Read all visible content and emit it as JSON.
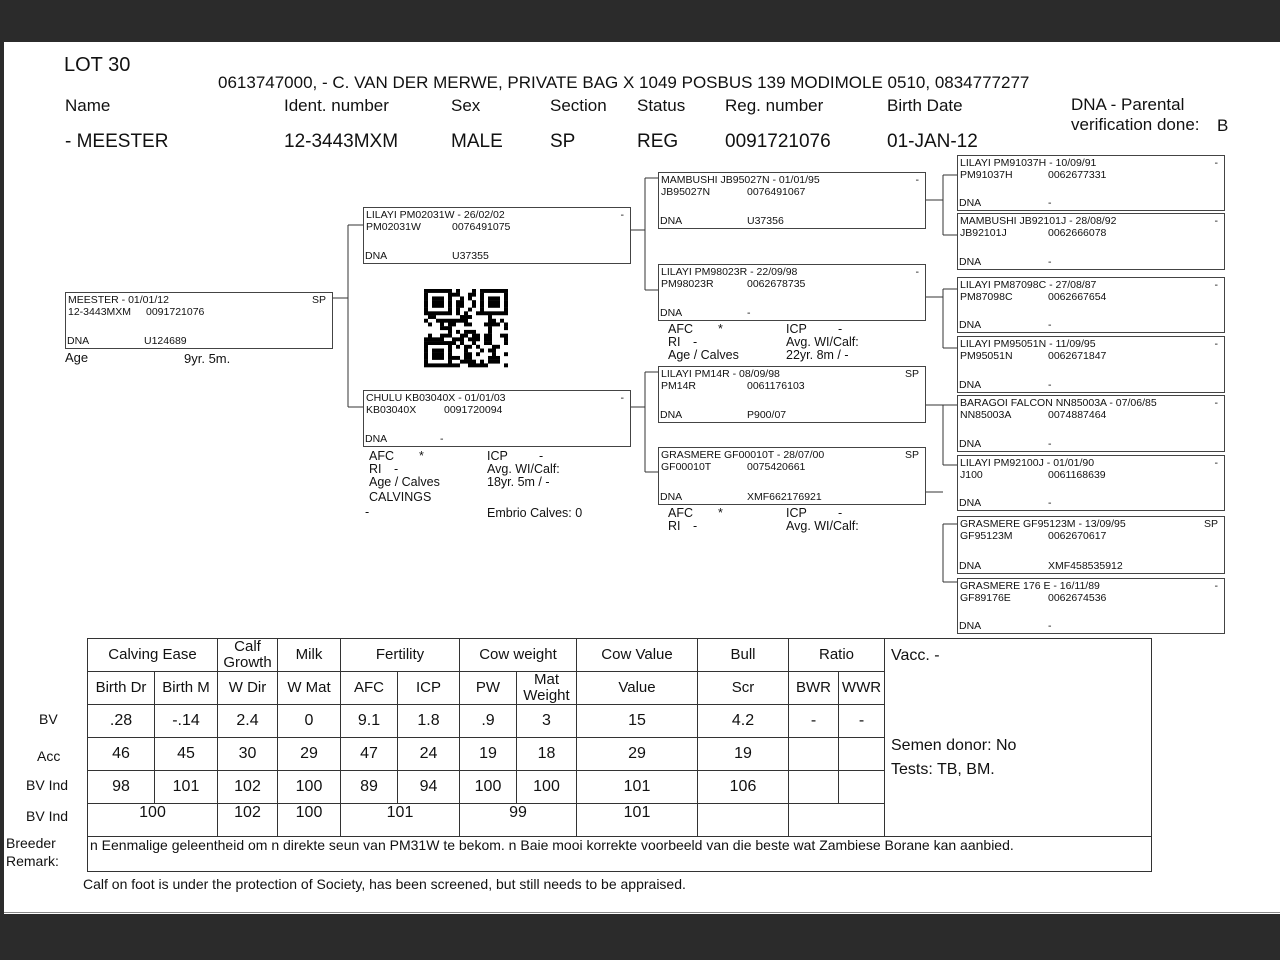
{
  "header": {
    "lot": "LOT 30",
    "owner": "0613747000, - C. VAN DER MERWE, PRIVATE BAG X 1049 POSBUS 139 MODIMOLE 0510, 0834777277",
    "labels": [
      "Name",
      "Ident. number",
      "Sex",
      "Section",
      "Status",
      "Reg. number",
      "Birth Date"
    ],
    "values": [
      "- MEESTER",
      "12-3443MXM",
      "MALE",
      "SP",
      "REG",
      "0091721076",
      "01-JAN-12"
    ],
    "dna_label": "DNA - Parental",
    "dna_label2": "verification done:",
    "dna_value": "B"
  },
  "pedigree": [
    {
      "title": "MEESTER - 01/01/12",
      "grade": "SP",
      "ident": "12-3443MXM",
      "reg": "0091721076",
      "dna": "U124689"
    },
    {
      "title": "LILAYI PM02031W - 26/02/02",
      "grade": "-",
      "ident": "PM02031W",
      "reg": "0076491075",
      "dna": "U37355"
    },
    {
      "title": "CHULU KB03040X - 01/01/03",
      "grade": "-",
      "ident": "KB03040X",
      "reg": "0091720094",
      "dna": "-"
    },
    {
      "title": "MAMBUSHI JB95027N - 01/01/95",
      "grade": "-",
      "ident": "JB95027N",
      "reg": "0076491067",
      "dna": "U37356"
    },
    {
      "title": "LILAYI PM98023R - 22/09/98",
      "grade": "-",
      "ident": "PM98023R",
      "reg": "0062678735",
      "dna": "-"
    },
    {
      "title": "LILAYI PM14R - 08/09/98",
      "grade": "SP",
      "ident": "PM14R",
      "reg": "0061176103",
      "dna": "P900/07"
    },
    {
      "title": "GRASMERE GF00010T - 28/07/00",
      "grade": "SP",
      "ident": "GF00010T",
      "reg": "0075420661",
      "dna": "XMF662176921"
    },
    {
      "title": "LILAYI PM91037H - 10/09/91",
      "grade": "-",
      "ident": "PM91037H",
      "reg": "0062677331",
      "dna": "-"
    },
    {
      "title": "MAMBUSHI JB92101J - 28/08/92",
      "grade": "-",
      "ident": "JB92101J",
      "reg": "0062666078",
      "dna": "-"
    },
    {
      "title": "LILAYI PM87098C - 27/08/87",
      "grade": "-",
      "ident": "PM87098C",
      "reg": "0062667654",
      "dna": "-"
    },
    {
      "title": "LILAYI PM95051N - 11/09/95",
      "grade": "-",
      "ident": "PM95051N",
      "reg": "0062671847",
      "dna": "-"
    },
    {
      "title": "BARAGOI FALCON NN85003A - 07/06/85",
      "grade": "-",
      "ident": "NN85003A",
      "reg": "0074887464",
      "dna": "-"
    },
    {
      "title": "LILAYI PM92100J - 01/01/90",
      "grade": "-",
      "ident": "J100",
      "reg": "0061168639",
      "dna": "-"
    },
    {
      "title": "GRASMERE GF95123M - 13/09/95",
      "grade": "SP",
      "ident": "GF95123M",
      "reg": "0062670617",
      "dna": "XMF458535912"
    },
    {
      "title": "GRASMERE 176 E - 16/11/89",
      "grade": "-",
      "ident": "GF89176E",
      "reg": "0062674536",
      "dna": "-"
    }
  ],
  "dna_label": "DNA",
  "subject_age": {
    "label": "Age",
    "value": "9yr. 5m."
  },
  "dam_perf": {
    "afc": "AFC",
    "afc_v": "*",
    "ri": "RI",
    "ri_v": "-",
    "age": "Age / Calves",
    "icp": "ICP",
    "icp_v": "-",
    "avg": "Avg. WI/Calf:",
    "age_v": "18yr. 5m  / -",
    "calvings": "CALVINGS",
    "calvings_v": "-",
    "embrio": "Embrio Calves: 0"
  },
  "sd_perf": {
    "afc": "AFC",
    "afc_v": "*",
    "ri": "RI",
    "ri_v": "-",
    "age": "Age / Calves",
    "icp": "ICP",
    "icp_v": "-",
    "avg": "Avg. WI/Calf:",
    "age_v": "22yr. 8m  / -"
  },
  "dd_perf": {
    "afc": "AFC",
    "afc_v": "*",
    "ri": "RI",
    "ri_v": "-",
    "icp": "ICP",
    "icp_v": "-",
    "avg": "Avg. WI/Calf:"
  },
  "table": {
    "groups": [
      "Calving Ease",
      "Calf Growth",
      "Milk",
      "Fertility",
      "Cow weight",
      "Cow Value",
      "Bull",
      "Ratio"
    ],
    "cols": [
      "Birth Dr",
      "Birth M",
      "W Dir",
      "W Mat",
      "AFC",
      "ICP",
      "PW",
      "Mat Weight",
      "Value",
      "Scr",
      "BWR",
      "WWR"
    ],
    "row_labels": [
      "BV",
      "Acc",
      "BV Ind",
      "BV Ind"
    ],
    "bv": [
      ".28",
      "-.14",
      "2.4",
      "0",
      "9.1",
      "1.8",
      ".9",
      "3",
      "15",
      "4.2",
      "-",
      "-"
    ],
    "acc": [
      "46",
      "45",
      "30",
      "29",
      "47",
      "24",
      "19",
      "18",
      "29",
      "19",
      "",
      ""
    ],
    "bvind": [
      "98",
      "101",
      "102",
      "100",
      "89",
      "94",
      "100",
      "100",
      "101",
      "106",
      "",
      ""
    ],
    "bvind2": [
      "100",
      "102",
      "100",
      "101",
      "99",
      "101",
      "",
      ""
    ],
    "vacc": "Vacc. -",
    "semen": "Semen donor: No",
    "tests": "Tests: TB, BM.",
    "remark_label1": "Breeder",
    "remark_label2": "Remark:",
    "remark": "n Eenmalige geleentheid om n direkte seun van PM31W te bekom. n Baie mooi korrekte voorbeeld van die beste wat Zambiese Borane kan aanbied."
  },
  "footer": "Calf on foot is under the protection of Society, has been screened, but still needs to be appraised."
}
